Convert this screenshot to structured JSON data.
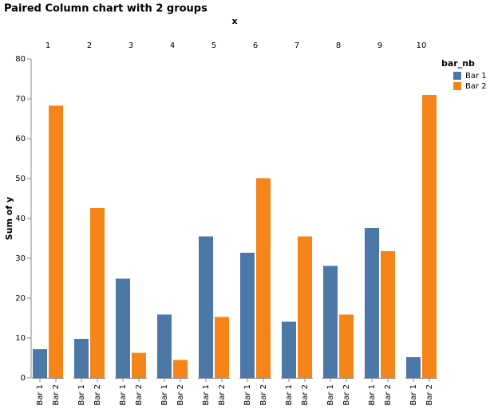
{
  "chart_data": {
    "type": "bar",
    "title": "Paired Column chart with 2 groups",
    "facet_title": "x",
    "categories": [
      "1",
      "2",
      "3",
      "4",
      "5",
      "6",
      "7",
      "8",
      "9",
      "10"
    ],
    "series": [
      {
        "name": "Bar 1",
        "color": "#4c78a8",
        "values": [
          7.2,
          9.8,
          24.9,
          15.9,
          35.5,
          31.4,
          14.1,
          28.1,
          37.6,
          5.2
        ]
      },
      {
        "name": "Bar 2",
        "color": "#f58518",
        "values": [
          68.3,
          42.6,
          6.3,
          4.5,
          15.3,
          50.1,
          35.5,
          15.9,
          31.8,
          71.0
        ]
      }
    ],
    "y_label": "Sum of y",
    "legend_title": "bar_nb",
    "ylim": [
      0,
      80
    ],
    "yticks": [
      0,
      10,
      20,
      30,
      40,
      50,
      60,
      70,
      80
    ],
    "grid": false
  }
}
